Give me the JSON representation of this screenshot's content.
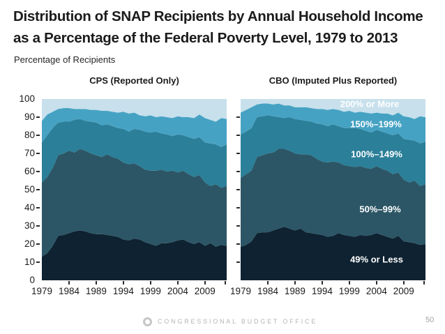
{
  "header": {
    "title_lines": [
      "Distribution of SNAP Recipients by Annual Household Income",
      "as a Percentage of the Federal Poverty Level, 1979 to 2013"
    ],
    "subtitle": "Percentage of Recipients"
  },
  "footer": {
    "organization": "CONGRESSIONAL BUDGET OFFICE",
    "page_number": "50",
    "logo": "cbo-ring-logo"
  },
  "chart_data": [
    {
      "type": "area",
      "stacked": true,
      "title": "CPS (Reported Only)",
      "xlabel": "",
      "ylabel": "Percentage of Recipients",
      "ylim": [
        0,
        100
      ],
      "grid": false,
      "y_ticks": [
        0,
        10,
        20,
        30,
        40,
        50,
        60,
        70,
        80,
        90,
        100
      ],
      "x_tick_labels": [
        1979,
        1984,
        1989,
        1994,
        1999,
        2004,
        2009
      ],
      "x": [
        1979,
        1980,
        1981,
        1982,
        1983,
        1984,
        1985,
        1986,
        1987,
        1988,
        1989,
        1990,
        1991,
        1992,
        1993,
        1994,
        1995,
        1996,
        1997,
        1998,
        1999,
        2000,
        2001,
        2002,
        2003,
        2004,
        2005,
        2006,
        2007,
        2008,
        2009,
        2010,
        2011,
        2012,
        2013
      ],
      "series": [
        {
          "name": "49% or Less",
          "color": "#0e2231",
          "values": [
            13,
            15,
            19,
            24.5,
            25,
            26,
            27,
            27.5,
            27,
            26,
            25.5,
            25.5,
            25,
            24.5,
            24,
            22.5,
            22,
            23,
            22.5,
            21,
            20,
            19,
            20.5,
            20.5,
            21,
            22,
            22.5,
            21,
            20,
            21,
            19,
            20.5,
            18.5,
            19.5,
            19
          ]
        },
        {
          "name": "50%–99%",
          "color": "#2c5666",
          "values": [
            41,
            42,
            43,
            44.5,
            45,
            45.5,
            43.5,
            45,
            44.5,
            44,
            43.5,
            42.5,
            44.5,
            43.5,
            43,
            42.5,
            42,
            41.5,
            40.5,
            40,
            40.5,
            41.5,
            40.5,
            39.5,
            39.5,
            37.5,
            38,
            37.5,
            37,
            37,
            35,
            31.5,
            34.5,
            31.5,
            33
          ]
        },
        {
          "name": "100%–149%",
          "color": "#2b7f98",
          "values": [
            22,
            23,
            22,
            18,
            17.5,
            16,
            18,
            16.5,
            16.5,
            17.5,
            18,
            17.5,
            16.5,
            17,
            17,
            18.5,
            18,
            19,
            20,
            21,
            21,
            21.5,
            20,
            20.5,
            19,
            21,
            19.5,
            20.5,
            21,
            21,
            22,
            23.5,
            22,
            22.5,
            23
          ]
        },
        {
          "name": "150%–199%",
          "color": "#46a2c3",
          "values": [
            12,
            11.5,
            9,
            7.5,
            7.5,
            7.5,
            6,
            5.5,
            6.5,
            6.5,
            7,
            8,
            7.5,
            8,
            8.5,
            9.5,
            10,
            9,
            8,
            8.5,
            9.5,
            8,
            9.5,
            9.5,
            10,
            10,
            10,
            11,
            11.5,
            12.5,
            13.5,
            13,
            12.5,
            16,
            14
          ]
        },
        {
          "name": "200% or More",
          "color": "#c7e0ec",
          "values": [
            12,
            8.5,
            7,
            5.5,
            5,
            5,
            5.5,
            5.5,
            5.5,
            6,
            6,
            6.5,
            6.5,
            7,
            7.5,
            7,
            8,
            7.5,
            9,
            9.5,
            9,
            10,
            9.5,
            10,
            10.5,
            9.5,
            10,
            10,
            10.5,
            8.5,
            10.5,
            11.5,
            12.5,
            10.5,
            11
          ]
        }
      ]
    },
    {
      "type": "area",
      "stacked": true,
      "title": "CBO (Imputed Plus Reported)",
      "xlabel": "",
      "ylabel": "Percentage of Recipients",
      "ylim": [
        0,
        100
      ],
      "grid": false,
      "y_ticks": [
        0,
        10,
        20,
        30,
        40,
        50,
        60,
        70,
        80,
        90,
        100
      ],
      "x_tick_labels": [
        1979,
        1984,
        1989,
        1994,
        1999,
        2004,
        2009
      ],
      "x": [
        1979,
        1980,
        1981,
        1982,
        1983,
        1984,
        1985,
        1986,
        1987,
        1988,
        1989,
        1990,
        1991,
        1992,
        1993,
        1994,
        1995,
        1996,
        1997,
        1998,
        1999,
        2000,
        2001,
        2002,
        2003,
        2004,
        2005,
        2006,
        2007,
        2008,
        2009,
        2010,
        2011,
        2012,
        2013
      ],
      "series": [
        {
          "name": "49% or Less",
          "color": "#0e2231",
          "values": [
            18.5,
            19.5,
            21.5,
            26,
            26.5,
            26.5,
            27.5,
            28.5,
            29.5,
            28.5,
            27.5,
            28.5,
            26.5,
            26,
            25.5,
            25,
            24,
            24.5,
            26,
            25,
            24.5,
            24,
            25,
            24.5,
            25,
            26,
            25,
            24,
            23,
            24.5,
            21.5,
            21,
            20.5,
            19.5,
            20
          ]
        },
        {
          "name": "50%–99%",
          "color": "#2c5666",
          "values": [
            38,
            39,
            39,
            42,
            42.5,
            43.5,
            43,
            44,
            43,
            43,
            42.5,
            41,
            43,
            43,
            41.5,
            40.5,
            41,
            41,
            39,
            38.5,
            38.5,
            38.5,
            38,
            37.5,
            36.5,
            37,
            36.5,
            36.5,
            35.5,
            35,
            34,
            33,
            34.5,
            32.5,
            33
          ]
        },
        {
          "name": "100%–149%",
          "color": "#2b7f98",
          "values": [
            24,
            23.5,
            23.5,
            22,
            21.5,
            21,
            20,
            17.5,
            17,
            18.5,
            19,
            19,
            18.5,
            18.5,
            19.5,
            20.5,
            20,
            20.5,
            20,
            20.5,
            21,
            21.5,
            20.5,
            20.5,
            20,
            20,
            20.5,
            20.5,
            21.5,
            21.5,
            22.5,
            23.5,
            22,
            23.5,
            23.5
          ]
        },
        {
          "name": "150%–199%",
          "color": "#46a2c3",
          "values": [
            12,
            12,
            11.5,
            7,
            7,
            6.5,
            6.5,
            7.5,
            7,
            6.5,
            6.5,
            7,
            7.5,
            7.5,
            8,
            8.5,
            9,
            8.5,
            9,
            9,
            9.5,
            8.5,
            9.5,
            10,
            10.5,
            9.5,
            10,
            11,
            11,
            11.5,
            12.5,
            12.5,
            12,
            15,
            13.5
          ]
        },
        {
          "name": "200% or More",
          "color": "#c7e0ec",
          "values": [
            7.5,
            6,
            4.5,
            3,
            2.5,
            2.5,
            3,
            2.5,
            3.5,
            3.5,
            4.5,
            4.5,
            4.5,
            5,
            5.5,
            5.5,
            6,
            5.5,
            6,
            7,
            6.5,
            7.5,
            7,
            7.5,
            8,
            7.5,
            8,
            8,
            9,
            7.5,
            9.5,
            10,
            11,
            9.5,
            10
          ]
        }
      ]
    }
  ]
}
